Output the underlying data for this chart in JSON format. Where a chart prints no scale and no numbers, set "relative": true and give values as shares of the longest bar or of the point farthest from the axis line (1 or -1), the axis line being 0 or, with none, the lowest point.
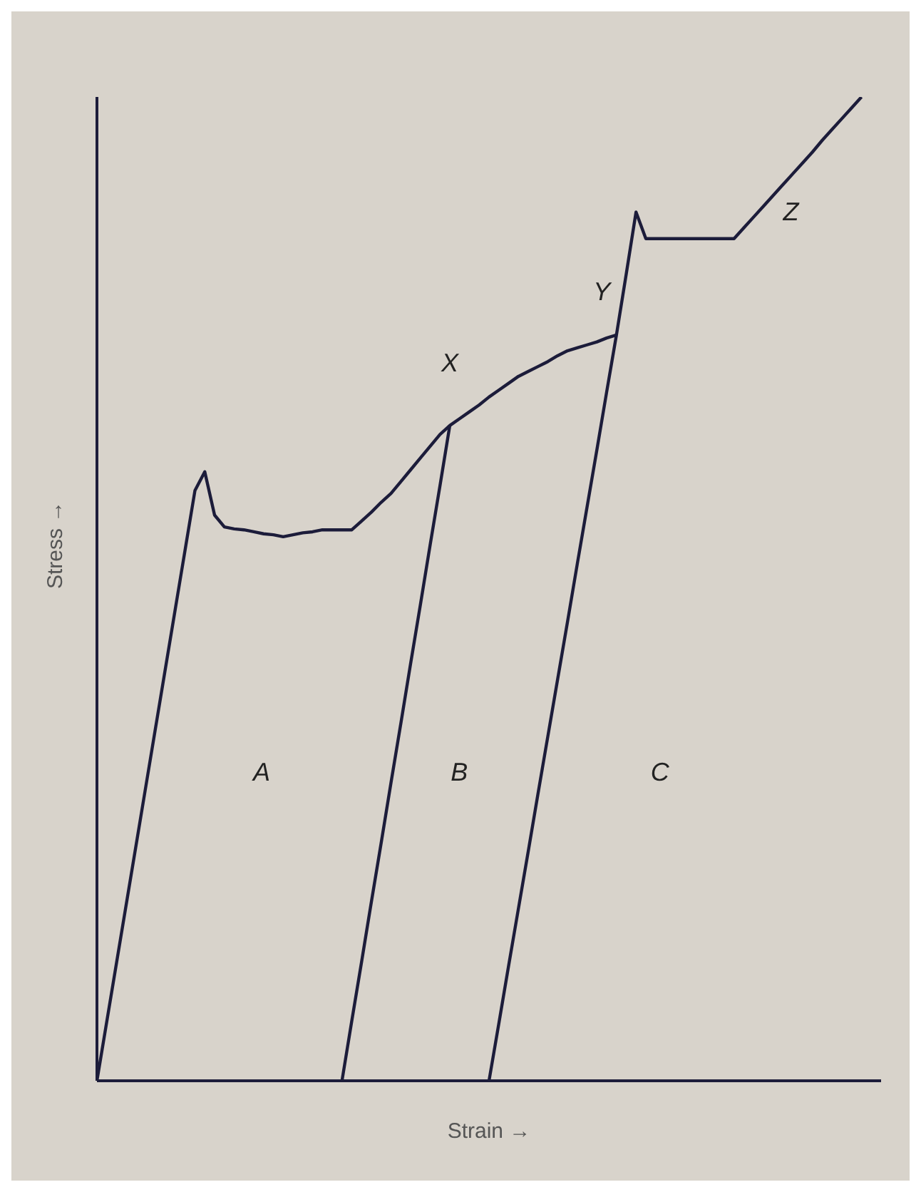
{
  "chart_data": {
    "type": "line",
    "relative": true,
    "xlabel": "Strain →",
    "ylabel": "Stress →",
    "marker": "none",
    "line_style": "solid",
    "categories": [
      null,
      null,
      null,
      null,
      null,
      null,
      null,
      null,
      null,
      null,
      null,
      null,
      null,
      null,
      null,
      null,
      null,
      null,
      null,
      null,
      null,
      null,
      null,
      null,
      null,
      null,
      null,
      null,
      null,
      null,
      null,
      null,
      null,
      null,
      null,
      null,
      null,
      null,
      null,
      null,
      null,
      null,
      null,
      null,
      null,
      null,
      null,
      null,
      null,
      null,
      null,
      null,
      null,
      null,
      null,
      null,
      null,
      null,
      null,
      null,
      null,
      null,
      null,
      null,
      null,
      null,
      null,
      null,
      null,
      null,
      null,
      null,
      null,
      null,
      null,
      null,
      null,
      null,
      null,
      null,
      null
    ],
    "series": [
      {
        "color": "#1c1c3a",
        "values": [
          0,
          0.06,
          0.12,
          0.18,
          0.24,
          0.3,
          0.36,
          0.42,
          0.48,
          0.54,
          0.6,
          0.619,
          0.575,
          0.563,
          0.561,
          0.56,
          0.558,
          0.556,
          0.555,
          0.553,
          0.555,
          0.557,
          0.558,
          0.56,
          0.56,
          0.56,
          0.56,
          0.569,
          0.578,
          0.588,
          0.597,
          0.609,
          0.621,
          0.633,
          0.645,
          0.657,
          0.666,
          0.673,
          0.68,
          0.687,
          0.695,
          0.702,
          0.709,
          0.716,
          0.721,
          0.726,
          0.731,
          0.737,
          0.742,
          0.745,
          0.748,
          0.751,
          0.755,
          0.758,
          null,
          null,
          null,
          null,
          null,
          null,
          null,
          null,
          null,
          null,
          null,
          null,
          null,
          null,
          null,
          null,
          null,
          null,
          null,
          null,
          null,
          null,
          null,
          null,
          null,
          null,
          null
        ]
      },
      {
        "color": "#1c1c3a",
        "values": [
          null,
          null,
          null,
          null,
          null,
          null,
          null,
          null,
          null,
          null,
          null,
          null,
          null,
          null,
          null,
          null,
          null,
          null,
          null,
          null,
          null,
          null,
          null,
          null,
          null,
          0,
          0.061,
          0.121,
          0.182,
          0.242,
          0.303,
          0.363,
          0.424,
          0.484,
          0.545,
          0.605,
          0.666,
          null,
          null,
          null,
          null,
          null,
          null,
          null,
          null,
          null,
          null,
          null,
          null,
          null,
          null,
          null,
          null,
          null,
          null,
          null,
          null,
          null,
          null,
          null,
          null,
          null,
          null,
          null,
          null,
          null,
          null,
          null,
          null,
          null,
          null,
          null,
          null,
          null,
          null,
          null,
          null,
          null,
          null,
          null,
          null
        ]
      },
      {
        "color": "#1c1c3a",
        "values": [
          null,
          null,
          null,
          null,
          null,
          null,
          null,
          null,
          null,
          null,
          null,
          null,
          null,
          null,
          null,
          null,
          null,
          null,
          null,
          null,
          null,
          null,
          null,
          null,
          null,
          null,
          null,
          null,
          null,
          null,
          null,
          null,
          null,
          null,
          null,
          null,
          null,
          null,
          null,
          null,
          0,
          0.058,
          0.117,
          0.175,
          0.233,
          0.292,
          0.35,
          0.408,
          0.466,
          0.525,
          0.583,
          0.641,
          0.7,
          0.758,
          0.82,
          0.883,
          0.856,
          0.856,
          0.856,
          0.856,
          0.856,
          0.856,
          0.856,
          0.856,
          0.856,
          0.856,
          0.867,
          0.878,
          0.889,
          0.9,
          0.911,
          0.922,
          0.933,
          0.944,
          0.956,
          0.967,
          0.978,
          0.989,
          1,
          null,
          null
        ]
      }
    ],
    "annotations": [
      "A",
      "B",
      "C",
      "X",
      "Y",
      "Z"
    ]
  }
}
